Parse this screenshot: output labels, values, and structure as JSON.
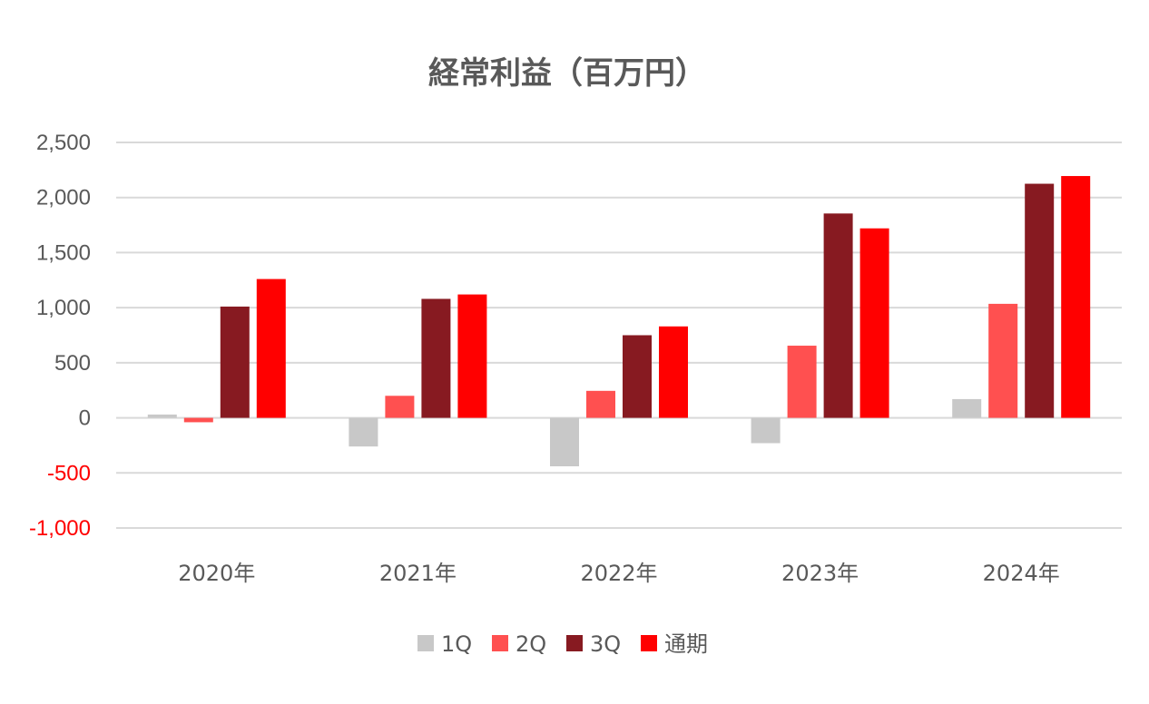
{
  "chart_data": {
    "type": "bar",
    "title": "経常利益（百万円）",
    "categories": [
      "2020年",
      "2021年",
      "2022年",
      "2023年",
      "2024年"
    ],
    "series": [
      {
        "name": "1Q",
        "color": "#c8c8c8",
        "values": [
          30,
          -260,
          -440,
          -230,
          170
        ]
      },
      {
        "name": "2Q",
        "color": "#ff5050",
        "values": [
          -40,
          200,
          245,
          655,
          1035
        ]
      },
      {
        "name": "3Q",
        "color": "#871a21",
        "values": [
          1010,
          1080,
          750,
          1855,
          2125
        ]
      },
      {
        "name": "通期",
        "color": "#ff0000",
        "values": [
          1260,
          1120,
          830,
          1720,
          2195
        ]
      }
    ],
    "yticks": [
      "2,500",
      "2,000",
      "1,500",
      "1,000",
      "500",
      "0",
      "-500",
      "-1,000"
    ],
    "ylim": [
      -1000,
      2500
    ],
    "negative_tick_color": "#ff0000",
    "grid": true,
    "legend_position": "bottom"
  }
}
